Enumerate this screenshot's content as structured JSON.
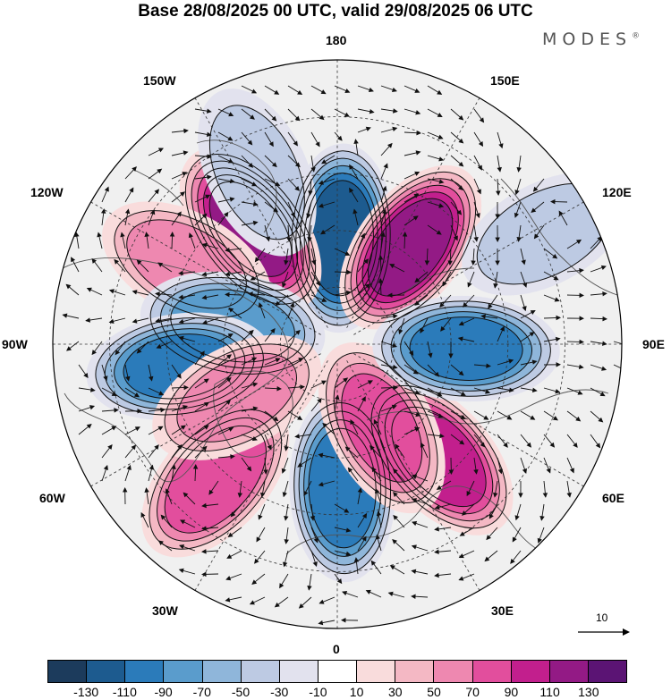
{
  "title": "Base 28/08/2025 00 UTC, valid 29/08/2025 06 UTC",
  "brand": "MODES",
  "brand_mark": "®",
  "longitude_labels": {
    "top": "180",
    "top_left": "150W",
    "top_right": "150E",
    "upper_left": "120W",
    "upper_right": "120E",
    "left": "90W",
    "right": "90E",
    "lower_left": "60W",
    "lower_right": "60E",
    "bottom_left": "30W",
    "bottom_right": "30E",
    "bottom": "0"
  },
  "reference_vector_label": "10",
  "colorbar": {
    "colors": [
      "#1c3b5c",
      "#1d5b8f",
      "#2b7bba",
      "#5a9ccc",
      "#8fb6da",
      "#bdcae3",
      "#e2e2ee",
      "#ffffff",
      "#f9dcdc",
      "#f4b8c4",
      "#ee88b0",
      "#e24e9d",
      "#c21f8d",
      "#931a85",
      "#5b1474"
    ],
    "ticks": [
      "-130",
      "-110",
      "-90",
      "-70",
      "-50",
      "-30",
      "-10",
      "10",
      "30",
      "50",
      "70",
      "90",
      "110",
      "130"
    ]
  },
  "anomaly_centers": [
    {
      "lon": 178,
      "lat": 62,
      "value": -120
    },
    {
      "lon": 143,
      "lat": 58,
      "value": 115
    },
    {
      "lon": -143,
      "lat": 52,
      "value": 110
    },
    {
      "lon": -155,
      "lat": 40,
      "value": -35
    },
    {
      "lon": -118,
      "lat": 45,
      "value": 55
    },
    {
      "lon": -100,
      "lat": 62,
      "value": -80
    },
    {
      "lon": -82,
      "lat": 48,
      "value": -90
    },
    {
      "lon": -42,
      "lat": 42,
      "value": 85
    },
    {
      "lon": -62,
      "lat": 60,
      "value": 55
    },
    {
      "lon": 2,
      "lat": 52,
      "value": -100
    },
    {
      "lon": 42,
      "lat": 50,
      "value": 100
    },
    {
      "lon": 28,
      "lat": 65,
      "value": 70
    },
    {
      "lon": 88,
      "lat": 56,
      "value": -90
    },
    {
      "lon": 118,
      "lat": 28,
      "value": -40
    }
  ]
}
